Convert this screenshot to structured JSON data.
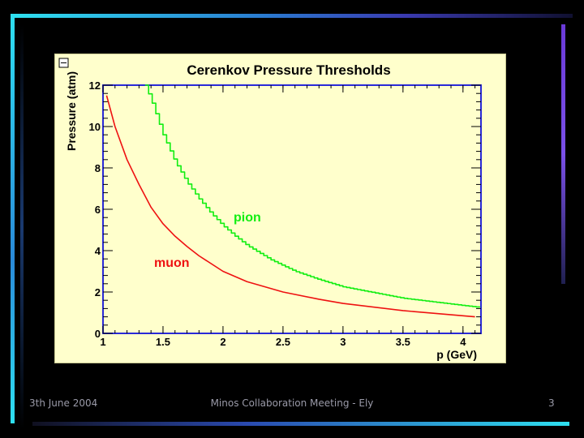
{
  "slide": {
    "footer_date": "3th June 2004",
    "footer_event": "Minos Collaboration Meeting - Ely",
    "page_number": "3"
  },
  "colors": {
    "background": "#000000",
    "plot_background": "#ffffcc",
    "muon": "#ee1111",
    "pion": "#11ee11"
  },
  "chart_data": {
    "type": "line",
    "title": "Cerenkov Pressure Thresholds",
    "xlabel": "p (GeV)",
    "ylabel": "Pressure (atm)",
    "xlim": [
      1,
      4.15
    ],
    "ylim": [
      0,
      12
    ],
    "xticks": [
      "1",
      "1.5",
      "2",
      "2.5",
      "3",
      "3.5",
      "4"
    ],
    "yticks": [
      "0",
      "2",
      "4",
      "6",
      "8",
      "10",
      "12"
    ],
    "series": [
      {
        "name": "muon",
        "color": "#ee1111",
        "style": "smooth",
        "x": [
          1.03,
          1.1,
          1.2,
          1.3,
          1.4,
          1.5,
          1.6,
          1.7,
          1.8,
          2.0,
          2.2,
          2.5,
          2.8,
          3.0,
          3.5,
          4.0,
          4.1
        ],
        "y": [
          11.5,
          10.0,
          8.4,
          7.2,
          6.1,
          5.3,
          4.7,
          4.2,
          3.75,
          3.0,
          2.5,
          2.0,
          1.65,
          1.45,
          1.1,
          0.85,
          0.8
        ]
      },
      {
        "name": "pion",
        "color": "#11ee11",
        "style": "step",
        "x": [
          1.35,
          1.4,
          1.5,
          1.6,
          1.7,
          1.8,
          1.9,
          2.0,
          2.1,
          2.2,
          2.4,
          2.6,
          2.8,
          3.0,
          3.5,
          4.0,
          4.15
        ],
        "y": [
          12.0,
          11.3,
          9.6,
          8.3,
          7.3,
          6.5,
          5.8,
          5.2,
          4.7,
          4.25,
          3.55,
          3.0,
          2.6,
          2.25,
          1.7,
          1.35,
          1.25
        ]
      }
    ]
  }
}
